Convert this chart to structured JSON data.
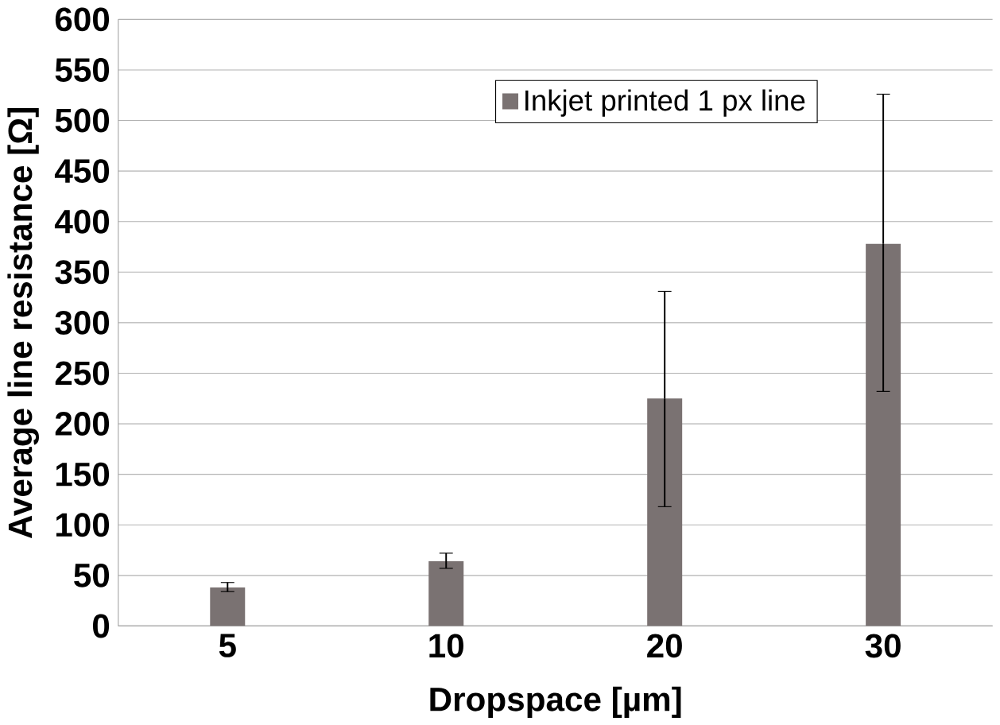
{
  "chart_data": {
    "type": "bar",
    "xlabel": "Dropspace [µm]",
    "ylabel": "Average line resistance [Ω]",
    "categories": [
      "5",
      "10",
      "20",
      "30"
    ],
    "series": [
      {
        "name": "Inkjet printed 1 px line",
        "color": "#7a7272",
        "values": [
          38,
          64,
          225,
          378
        ],
        "errors": [
          [
            34,
            43
          ],
          [
            57,
            72
          ],
          [
            118,
            331
          ],
          [
            232,
            526
          ]
        ]
      }
    ],
    "ylim": [
      0,
      600
    ],
    "yticks": [
      0,
      50,
      100,
      150,
      200,
      250,
      300,
      350,
      400,
      450,
      500,
      550,
      600
    ],
    "grid": "y",
    "legend": "top right"
  }
}
